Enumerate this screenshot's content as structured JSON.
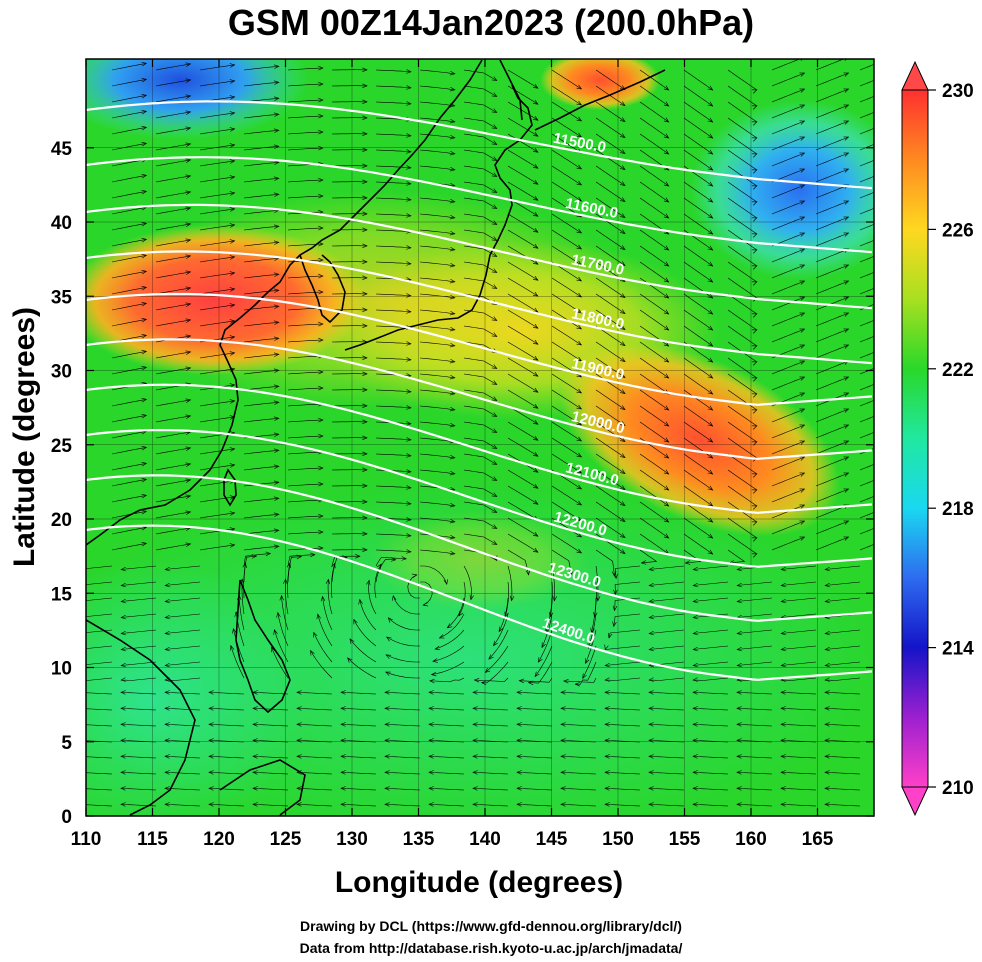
{
  "title": "GSM 00Z14Jan2023 (200.0hPa)",
  "xlabel": "Longitude (degrees)",
  "ylabel": "Latitude  (degrees)",
  "x_ticks": [
    "110",
    "115",
    "120",
    "125",
    "130",
    "135",
    "140",
    "145",
    "150",
    "155",
    "160",
    "165"
  ],
  "y_ticks": [
    "0",
    "5",
    "10",
    "15",
    "20",
    "25",
    "30",
    "35",
    "40",
    "45"
  ],
  "colorbar_ticks": [
    "230",
    "226",
    "222",
    "218",
    "214",
    "210"
  ],
  "contour_labels": [
    "11500.0",
    "11600.0",
    "11700.0",
    "11800.0",
    "11900.0",
    "12000.0",
    "12100.0",
    "12200.0",
    "12300.0",
    "12400.0"
  ],
  "credits": {
    "line1": "Drawing by DCL (https://www.gfd-dennou.org/library/dcl/)",
    "line2": "Data from http://database.rish.kyoto-u.ac.jp/arch/jmadata/"
  },
  "colors": {
    "background_field": "#22cc33",
    "warm_max": "#ff4040",
    "cool_min": "#ff44cc",
    "contour": "#ffffff",
    "streamline": "#000000"
  }
}
